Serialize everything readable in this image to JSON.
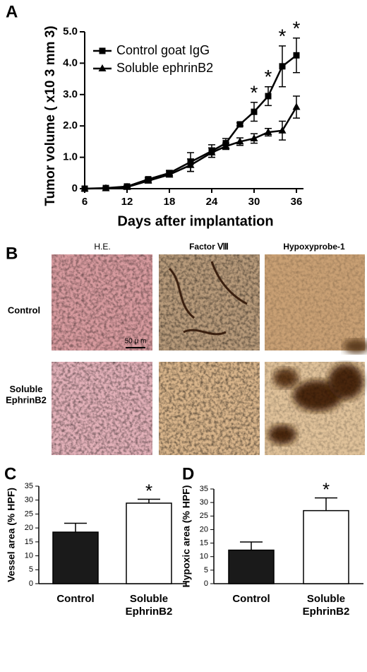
{
  "chart_data": [
    {
      "type": "line",
      "panel_label": "A",
      "xlabel": "Days after implantation",
      "ylabel": "Tumor volume ( x10 3 mm 3)",
      "x": [
        6,
        9,
        12,
        15,
        18,
        21,
        24,
        26,
        28,
        30,
        32,
        34,
        36
      ],
      "series": [
        {
          "name": "Control goat IgG",
          "color": "#000000",
          "marker": "square",
          "values": [
            0,
            0.02,
            0.07,
            0.3,
            0.5,
            0.85,
            1.2,
            1.45,
            2.05,
            2.45,
            2.95,
            3.9,
            4.25
          ],
          "errors": [
            0,
            0.02,
            0.03,
            0.05,
            0.08,
            0.3,
            0.2,
            0.15,
            0.05,
            0.3,
            0.3,
            0.65,
            0.55
          ]
        },
        {
          "name": "Soluble ephrinB2",
          "color": "#000000",
          "marker": "triangle",
          "values": [
            0,
            0.01,
            0.05,
            0.25,
            0.45,
            0.75,
            1.15,
            1.35,
            1.5,
            1.6,
            1.8,
            1.85,
            2.6
          ],
          "errors": [
            0,
            0.02,
            0.03,
            0.05,
            0.08,
            0.2,
            0.15,
            0.1,
            0.12,
            0.15,
            0.12,
            0.3,
            0.35
          ]
        }
      ],
      "annotations": [
        {
          "text": "*",
          "x": 30
        },
        {
          "text": "*",
          "x": 32
        },
        {
          "text": "*",
          "x": 34
        },
        {
          "text": "*",
          "x": 36
        }
      ],
      "xlim": [
        6,
        37
      ],
      "xticks": [
        6,
        12,
        18,
        24,
        30,
        36
      ],
      "ylim": [
        0,
        5
      ],
      "yticks": [
        0,
        {
          "value": 1,
          "label": "1.0"
        },
        {
          "value": 2,
          "label": "2.0"
        },
        {
          "value": 3,
          "label": "3.0"
        },
        {
          "value": 4,
          "label": "4.0"
        },
        {
          "value": 5,
          "label": "5.0"
        }
      ],
      "legend": "upper left"
    },
    {
      "type": "image-grid",
      "panel_label": "B",
      "columns": [
        "H.E.",
        "Factor Ⅷ",
        "Hypoxyprobe-1"
      ],
      "rows": [
        "Control",
        "Soluble\nEphrinB2"
      ],
      "scale_bar": "50 μ m"
    },
    {
      "type": "bar",
      "panel_label": "C",
      "ylabel": "Vessel area (% HPF)",
      "categories": [
        "Control",
        "Soluble\nEphrinB2"
      ],
      "values": [
        18.5,
        28.9
      ],
      "errors": [
        3.2,
        1.4
      ],
      "colors": [
        "#1a1a1a",
        "#ffffff"
      ],
      "annotations": [
        null,
        "*"
      ],
      "ylim": [
        0,
        35
      ],
      "yticks": [
        0,
        5,
        10,
        15,
        20,
        25,
        30,
        35
      ]
    },
    {
      "type": "bar",
      "panel_label": "D",
      "ylabel": "Hypoxic area (% HPF)",
      "categories": [
        "Control",
        "Soluble\nEphrinB2"
      ],
      "values": [
        12.4,
        27
      ],
      "errors": [
        3,
        4.7
      ],
      "colors": [
        "#1a1a1a",
        "#ffffff"
      ],
      "annotations": [
        null,
        "*"
      ],
      "ylim": [
        0,
        35
      ],
      "yticks": [
        0,
        5,
        10,
        15,
        20,
        25,
        30,
        35
      ]
    }
  ]
}
